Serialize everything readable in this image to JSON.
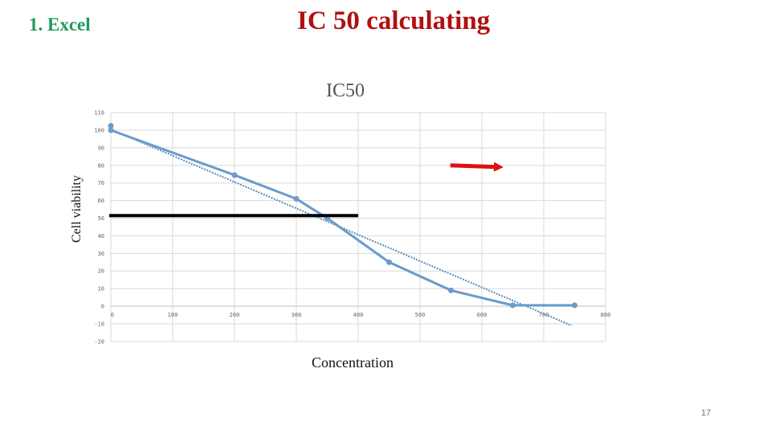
{
  "slide": {
    "section_label": "1. Excel",
    "title": "IC 50 calculating",
    "page_number": "17",
    "colors": {
      "section_label": "#1f9a5a",
      "title": "#b01010",
      "series": "#6a9bcb",
      "trendline": "#5b8cba",
      "ic50_line": "#000000",
      "arrow": "#e01010",
      "grid": "#d9d9d9"
    }
  },
  "chart_data": {
    "type": "scatter",
    "title": "IC50",
    "xlabel": "Concentration",
    "ylabel": "Cell viability",
    "xlim": [
      0,
      800
    ],
    "ylim": [
      -20,
      110
    ],
    "x_ticks": [
      "0",
      "100",
      "200",
      "300",
      "400",
      "500",
      "600",
      "700",
      "800"
    ],
    "y_ticks": [
      "110",
      "100",
      "90",
      "80",
      "70",
      "60",
      "50",
      "40",
      "30",
      "20",
      "10",
      "0",
      "-10",
      "-20"
    ],
    "grid": true,
    "legend": null,
    "series": [
      {
        "name": "Cell viability",
        "style": "line-with-markers",
        "x": [
          0,
          0,
          200,
          300,
          350,
          450,
          550,
          650,
          750
        ],
        "y": [
          102.5,
          100,
          74.5,
          61,
          50,
          25,
          9,
          0.5,
          0.5
        ]
      },
      {
        "name": "Linear trendline",
        "style": "dotted",
        "x": [
          0,
          745
        ],
        "y": [
          100.5,
          -11
        ]
      }
    ],
    "annotations": [
      {
        "type": "hline",
        "label": "IC50 level",
        "y": 51.5,
        "x_from": 0,
        "x_to": 400,
        "color": "#000000"
      },
      {
        "type": "arrow",
        "label": "red-arrow",
        "from": [
          549,
          80
        ],
        "to": [
          635,
          79
        ],
        "color": "#e01010"
      }
    ]
  }
}
